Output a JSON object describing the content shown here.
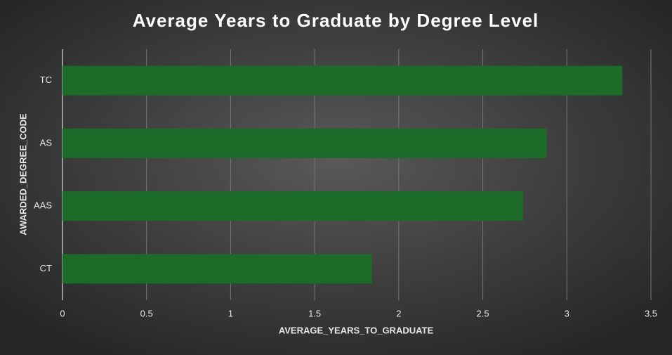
{
  "chart_data": {
    "type": "hbar",
    "title": "Average Years to Graduate by Degree Level",
    "x_label": "AVERAGE_YEARS_TO_GRADUATE",
    "y_label": "AWARDED_DEGREE_CODE",
    "categories": [
      "TC",
      "AS",
      "AAS",
      "CT"
    ],
    "values": [
      3.33,
      2.88,
      2.74,
      1.84
    ],
    "color": "#1d6b28",
    "xlim": [
      0,
      3.5
    ],
    "xticks": [
      0,
      0.5,
      1,
      1.5,
      2,
      2.5,
      3,
      3.5
    ],
    "grid": true
  }
}
